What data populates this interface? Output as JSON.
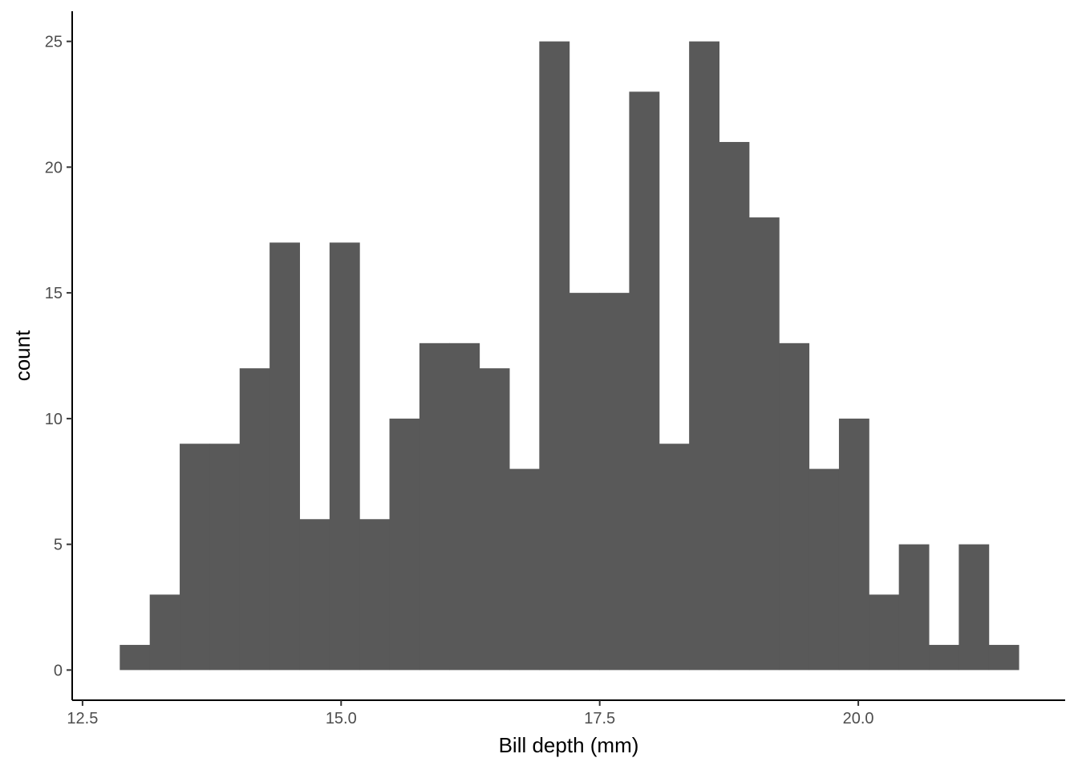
{
  "chart_data": {
    "type": "bar",
    "subtype": "histogram",
    "xlabel": "Bill depth (mm)",
    "ylabel": "count",
    "xlim": [
      12.4,
      22.0
    ],
    "ylim": [
      -1.2,
      26.2
    ],
    "xticks": [
      12.5,
      15.0,
      17.5,
      20.0
    ],
    "xtick_labels": [
      "12.5",
      "15.0",
      "17.5",
      "20.0"
    ],
    "yticks": [
      0,
      5,
      10,
      15,
      20,
      25
    ],
    "ytick_labels": [
      "0",
      "5",
      "10",
      "15",
      "20",
      "25"
    ],
    "bin_start": 12.86,
    "bin_width": 0.2897,
    "values": [
      1,
      3,
      9,
      9,
      12,
      17,
      6,
      17,
      6,
      10,
      13,
      13,
      12,
      8,
      25,
      15,
      15,
      23,
      9,
      25,
      21,
      18,
      13,
      8,
      10,
      3,
      5,
      1,
      5,
      1
    ],
    "bar_color": "#595959",
    "grid": false,
    "legend": "none"
  }
}
